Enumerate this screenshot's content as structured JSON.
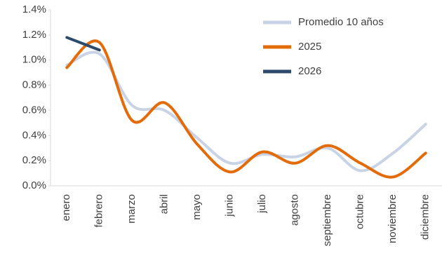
{
  "chart_data": {
    "type": "line",
    "categories": [
      "enero",
      "febrero",
      "marzo",
      "abril",
      "mayo",
      "junio",
      "julio",
      "agosto",
      "septiembre",
      "octubre",
      "noviembre",
      "diciembre"
    ],
    "series": [
      {
        "name": "Promedio 10 años",
        "color": "#c9d3e6",
        "values": [
          0.96,
          1.05,
          0.64,
          0.6,
          0.38,
          0.18,
          0.25,
          0.23,
          0.3,
          0.12,
          0.26,
          0.49
        ]
      },
      {
        "name": "2025",
        "color": "#e36c0a",
        "values": [
          0.94,
          1.14,
          0.52,
          0.66,
          0.33,
          0.11,
          0.27,
          0.18,
          0.32,
          0.18,
          0.07,
          0.26
        ]
      },
      {
        "name": "2026",
        "color": "#2e4a6b",
        "values": [
          1.18,
          1.08,
          null,
          null,
          null,
          null,
          null,
          null,
          null,
          null,
          null,
          null
        ]
      }
    ],
    "ylim": [
      0,
      1.4
    ],
    "yticks": [
      {
        "value": 0,
        "label": "0.0%"
      },
      {
        "value": 0.2,
        "label": "0.2%"
      },
      {
        "value": 0.4,
        "label": "0.4%"
      },
      {
        "value": 0.6,
        "label": "0.6%"
      },
      {
        "value": 0.8,
        "label": "0.8%"
      },
      {
        "value": 1.0,
        "label": "1.0%"
      },
      {
        "value": 1.2,
        "label": "1.2%"
      },
      {
        "value": 1.4,
        "label": "1.4%"
      }
    ],
    "smooth": true,
    "legend": "upper right"
  }
}
